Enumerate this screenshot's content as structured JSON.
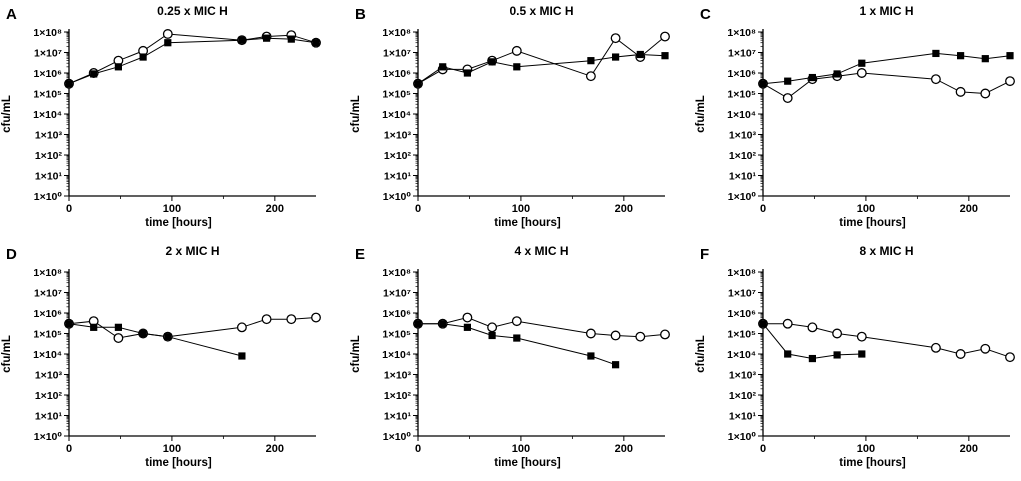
{
  "chart_data": [
    {
      "panel_label": "A",
      "title": "0.25 x MIC H",
      "type": "line",
      "xlabel": "time [hours]",
      "ylabel": "cfu/mL",
      "xlim": [
        0,
        240
      ],
      "ylim_log10": [
        0,
        8
      ],
      "x_ticks": [
        "0",
        "100",
        "200"
      ],
      "y_ticks": [
        "1×10⁰",
        "1×10¹",
        "1×10²",
        "1×10³",
        "1×10⁴",
        "1×10⁵",
        "1×10⁶",
        "1×10⁷",
        "1×10⁸"
      ],
      "series": [
        {
          "name": "open circles",
          "marker": "circle-open",
          "x": [
            0,
            24,
            48,
            72,
            96,
            168,
            192,
            216,
            240
          ],
          "y": [
            300000,
            1000000,
            4000000,
            12000000,
            80000000,
            40000000,
            60000000,
            70000000,
            30000000
          ]
        },
        {
          "name": "filled squares",
          "marker": "square-filled",
          "x": [
            0,
            24,
            48,
            72,
            96,
            168,
            192,
            216,
            240
          ],
          "y": [
            300000,
            900000,
            2000000,
            6000000,
            30000000,
            40000000,
            50000000,
            45000000,
            30000000
          ]
        }
      ]
    },
    {
      "panel_label": "B",
      "title": "0.5 x MIC H",
      "type": "line",
      "xlabel": "time [hours]",
      "ylabel": "cfu/mL",
      "xlim": [
        0,
        240
      ],
      "ylim_log10": [
        0,
        8
      ],
      "x_ticks": [
        "0",
        "100",
        "200"
      ],
      "y_ticks": [
        "1×10⁰",
        "1×10¹",
        "1×10²",
        "1×10³",
        "1×10⁴",
        "1×10⁵",
        "1×10⁶",
        "1×10⁷",
        "1×10⁸"
      ],
      "series": [
        {
          "name": "open circles",
          "marker": "circle-open",
          "x": [
            0,
            24,
            48,
            72,
            96,
            168,
            192,
            216,
            240
          ],
          "y": [
            300000,
            1500000,
            1500000,
            4000000,
            12000000,
            700000,
            50000000,
            6000000,
            60000000
          ]
        },
        {
          "name": "filled squares",
          "marker": "square-filled",
          "x": [
            0,
            24,
            48,
            72,
            96,
            168,
            192,
            216,
            240
          ],
          "y": [
            300000,
            2000000,
            1000000,
            3500000,
            2000000,
            4000000,
            6000000,
            8000000,
            7000000
          ]
        }
      ]
    },
    {
      "panel_label": "C",
      "title": "1 x MIC H",
      "type": "line",
      "xlabel": "time [hours]",
      "ylabel": "cfu/mL",
      "xlim": [
        0,
        240
      ],
      "ylim_log10": [
        0,
        8
      ],
      "x_ticks": [
        "0",
        "100",
        "200"
      ],
      "y_ticks": [
        "1×10⁰",
        "1×10¹",
        "1×10²",
        "1×10³",
        "1×10⁴",
        "1×10⁵",
        "1×10⁶",
        "1×10⁷",
        "1×10⁸"
      ],
      "series": [
        {
          "name": "open circles",
          "marker": "circle-open",
          "x": [
            0,
            24,
            48,
            72,
            96,
            168,
            192,
            216,
            240
          ],
          "y": [
            300000,
            60000,
            500000,
            700000,
            1000000,
            500000,
            120000,
            100000,
            400000
          ]
        },
        {
          "name": "filled squares",
          "marker": "square-filled",
          "x": [
            0,
            24,
            48,
            72,
            96,
            168,
            192,
            216,
            240
          ],
          "y": [
            300000,
            400000,
            600000,
            900000,
            3000000,
            9000000,
            7000000,
            5000000,
            7000000
          ]
        }
      ]
    },
    {
      "panel_label": "D",
      "title": "2 x MIC H",
      "type": "line",
      "xlabel": "time [hours]",
      "ylabel": "cfu/mL",
      "xlim": [
        0,
        240
      ],
      "ylim_log10": [
        0,
        8
      ],
      "x_ticks": [
        "0",
        "100",
        "200"
      ],
      "y_ticks": [
        "1×10⁰",
        "1×10¹",
        "1×10²",
        "1×10³",
        "1×10⁴",
        "1×10⁵",
        "1×10⁶",
        "1×10⁷",
        "1×10⁸"
      ],
      "series": [
        {
          "name": "open circles",
          "marker": "circle-open",
          "x": [
            0,
            24,
            48,
            72,
            96,
            168,
            192,
            216,
            240
          ],
          "y": [
            300000,
            400000,
            60000,
            100000,
            70000,
            200000,
            500000,
            500000,
            600000
          ]
        },
        {
          "name": "filled squares",
          "marker": "square-filled",
          "x": [
            0,
            24,
            48,
            72,
            96,
            168
          ],
          "y": [
            300000,
            200000,
            200000,
            100000,
            70000,
            8000
          ]
        }
      ]
    },
    {
      "panel_label": "E",
      "title": "4 x MIC H",
      "type": "line",
      "xlabel": "time [hours]",
      "ylabel": "cfu/mL",
      "xlim": [
        0,
        240
      ],
      "ylim_log10": [
        0,
        8
      ],
      "x_ticks": [
        "0",
        "100",
        "200"
      ],
      "y_ticks": [
        "1×10⁰",
        "1×10¹",
        "1×10²",
        "1×10³",
        "1×10⁴",
        "1×10⁵",
        "1×10⁶",
        "1×10⁷",
        "1×10⁸"
      ],
      "series": [
        {
          "name": "open circles",
          "marker": "circle-open",
          "x": [
            0,
            24,
            48,
            72,
            96,
            168,
            192,
            216,
            240
          ],
          "y": [
            300000,
            300000,
            600000,
            200000,
            400000,
            100000,
            80000,
            70000,
            90000
          ]
        },
        {
          "name": "filled squares",
          "marker": "square-filled",
          "x": [
            0,
            24,
            48,
            72,
            96,
            168,
            192
          ],
          "y": [
            300000,
            300000,
            200000,
            80000,
            60000,
            8000,
            3000
          ]
        }
      ]
    },
    {
      "panel_label": "F",
      "title": "8 x MIC H",
      "type": "line",
      "xlabel": "time [hours]",
      "ylabel": "cfu/mL",
      "xlim": [
        0,
        240
      ],
      "ylim_log10": [
        0,
        8
      ],
      "x_ticks": [
        "0",
        "100",
        "200"
      ],
      "y_ticks": [
        "1×10⁰",
        "1×10¹",
        "1×10²",
        "1×10³",
        "1×10⁴",
        "1×10⁵",
        "1×10⁶",
        "1×10⁷",
        "1×10⁸"
      ],
      "series": [
        {
          "name": "open circles",
          "marker": "circle-open",
          "x": [
            0,
            24,
            48,
            72,
            96,
            168,
            192,
            216,
            240
          ],
          "y": [
            300000,
            300000,
            200000,
            100000,
            70000,
            20000,
            10000,
            18000,
            7000
          ]
        },
        {
          "name": "filled squares",
          "marker": "square-filled",
          "x": [
            0,
            24,
            48,
            72,
            96
          ],
          "y": [
            300000,
            10000,
            6000,
            9000,
            10000
          ]
        }
      ]
    }
  ]
}
